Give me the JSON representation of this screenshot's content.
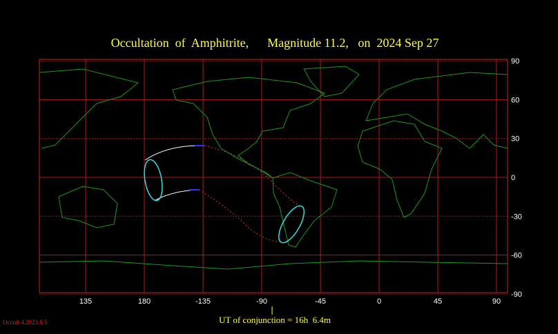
{
  "title": "Occultation  of  Amphitrite,      Magnitude 11.2,   on  2024 Sep 27",
  "map": {
    "xticks": [
      135,
      180,
      -135,
      -90,
      -45,
      0,
      45,
      90
    ],
    "yticks": [
      90,
      60,
      30,
      0,
      -30,
      -60,
      -90
    ]
  },
  "footer": {
    "conjunction": "UT of conjunction = 16h  6.4m",
    "version": "Occult 4.2023.6.5"
  }
}
